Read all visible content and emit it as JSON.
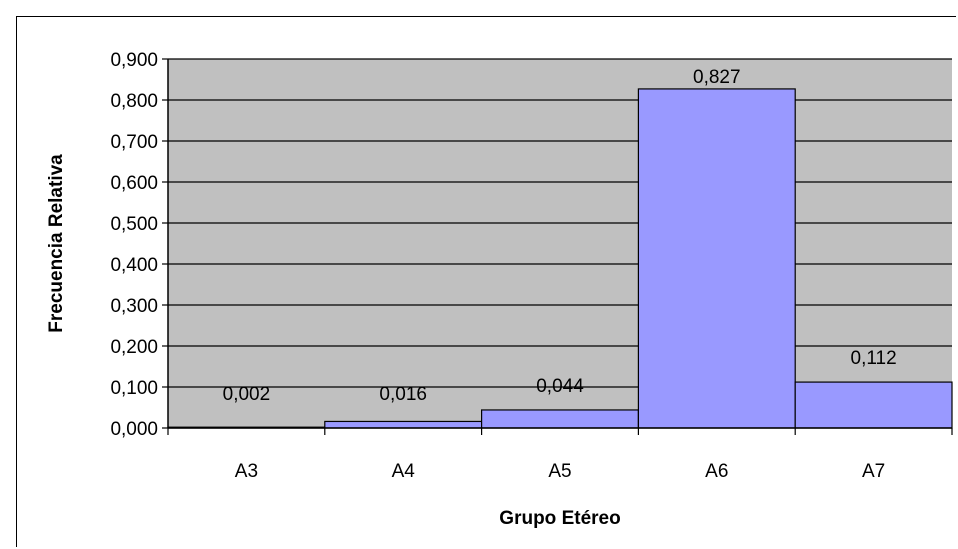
{
  "chart_data": {
    "type": "bar",
    "categories": [
      "A3",
      "A4",
      "A5",
      "A6",
      "A7"
    ],
    "values": [
      0.002,
      0.016,
      0.044,
      0.827,
      0.112
    ],
    "data_labels": [
      "0,002",
      "0,016",
      "0,044",
      "0,827",
      "0,112"
    ],
    "xlabel": "Grupo Etéreo",
    "ylabel": "Frecuencia Relativa",
    "ylim": [
      0,
      0.9
    ],
    "yticks": [
      0,
      0.1,
      0.2,
      0.3,
      0.4,
      0.5,
      0.6,
      0.7,
      0.8,
      0.9
    ],
    "ytick_labels": [
      "0,000",
      "0,100",
      "0,200",
      "0,300",
      "0,400",
      "0,500",
      "0,600",
      "0,700",
      "0,800",
      "0,900"
    ],
    "grid": true,
    "legend": "none",
    "colors": {
      "plot_background": "#c0c0c0",
      "bar_fill": "#9999ff",
      "bar_stroke": "#000000",
      "gridline": "#000000"
    }
  }
}
